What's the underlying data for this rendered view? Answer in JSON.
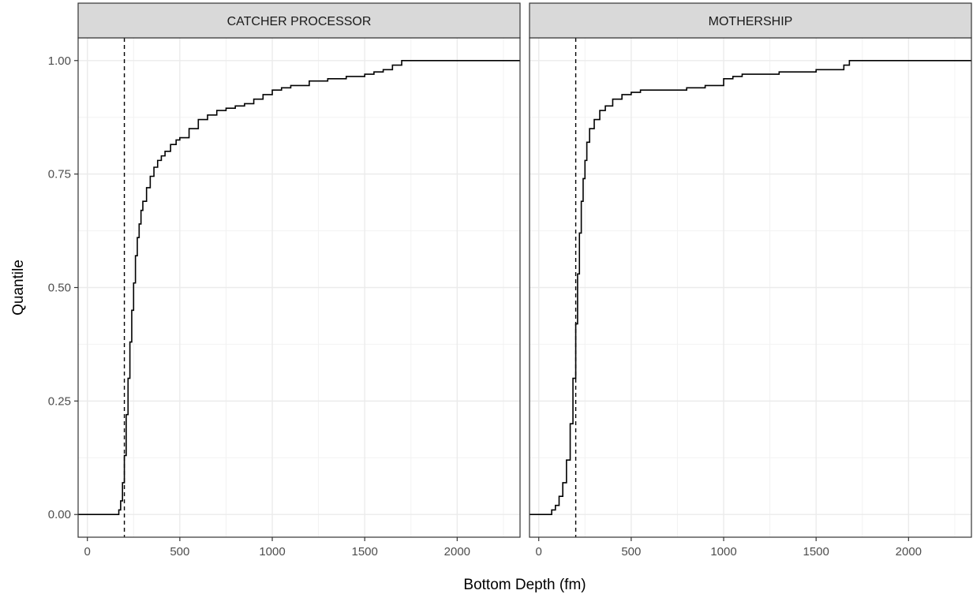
{
  "chart_data": {
    "type": "line",
    "xlabel": "Bottom Depth (fm)",
    "ylabel": "Quantile",
    "xlim": [
      -50,
      2340
    ],
    "ylim": [
      -0.05,
      1.05
    ],
    "x_ticks": [
      0,
      500,
      1000,
      1500,
      2000
    ],
    "x_tick_labels": [
      "0",
      "500",
      "1000",
      "1500",
      "2000"
    ],
    "y_ticks": [
      0,
      0.25,
      0.5,
      0.75,
      1.0
    ],
    "y_tick_labels": [
      "0.00",
      "0.25",
      "0.50",
      "0.75",
      "1.00"
    ],
    "reference_line": {
      "x": 200,
      "style": "dashed"
    },
    "grid": true,
    "panels": [
      {
        "strip_label": "CATCHER PROCESSOR",
        "x": [
          -50,
          160,
          170,
          180,
          190,
          200,
          210,
          220,
          230,
          240,
          250,
          260,
          270,
          280,
          290,
          300,
          320,
          340,
          360,
          380,
          400,
          420,
          450,
          480,
          500,
          550,
          600,
          650,
          700,
          750,
          800,
          850,
          900,
          950,
          1000,
          1050,
          1100,
          1150,
          1200,
          1300,
          1400,
          1500,
          1550,
          1600,
          1650,
          1700,
          1720,
          2340
        ],
        "y": [
          0,
          0,
          0.01,
          0.03,
          0.07,
          0.13,
          0.22,
          0.3,
          0.38,
          0.45,
          0.51,
          0.57,
          0.61,
          0.64,
          0.67,
          0.69,
          0.72,
          0.745,
          0.765,
          0.78,
          0.79,
          0.8,
          0.815,
          0.825,
          0.83,
          0.85,
          0.87,
          0.88,
          0.89,
          0.895,
          0.9,
          0.905,
          0.915,
          0.925,
          0.935,
          0.94,
          0.945,
          0.945,
          0.955,
          0.96,
          0.965,
          0.97,
          0.975,
          0.98,
          0.99,
          1.0,
          1.0,
          1.0
        ]
      },
      {
        "strip_label": "MOTHERSHIP",
        "x": [
          -50,
          50,
          70,
          90,
          110,
          130,
          150,
          170,
          185,
          200,
          210,
          220,
          230,
          240,
          250,
          260,
          275,
          300,
          330,
          360,
          400,
          450,
          500,
          550,
          600,
          700,
          800,
          900,
          1000,
          1050,
          1100,
          1200,
          1300,
          1400,
          1500,
          1600,
          1650,
          1680,
          1700,
          2340
        ],
        "y": [
          0,
          0,
          0.01,
          0.02,
          0.04,
          0.07,
          0.12,
          0.2,
          0.3,
          0.42,
          0.53,
          0.62,
          0.69,
          0.74,
          0.78,
          0.82,
          0.85,
          0.87,
          0.89,
          0.9,
          0.915,
          0.925,
          0.93,
          0.935,
          0.935,
          0.935,
          0.94,
          0.945,
          0.96,
          0.965,
          0.97,
          0.97,
          0.975,
          0.975,
          0.98,
          0.98,
          0.99,
          1.0,
          1.0,
          1.0
        ]
      }
    ]
  },
  "colors": {
    "strip_fill": "#d9d9d9",
    "grid_major": "#ebebeb",
    "grid_minor": "#f2f2f2",
    "border": "#333333",
    "line": "#000000",
    "tick_text": "#4d4d4d"
  }
}
